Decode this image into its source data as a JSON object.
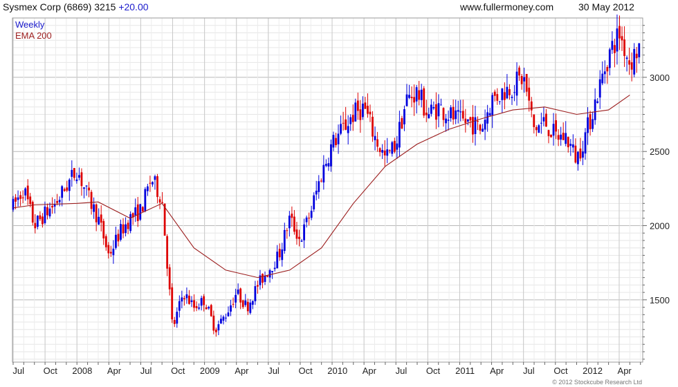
{
  "header": {
    "title": "Sysmex Corp (6869) 3215",
    "change": "+20.00",
    "site": "www.fullermoney.com",
    "date": "30 May 2012",
    "change_color": "#1a1acc"
  },
  "legend": {
    "weekly": "Weekly",
    "ema": "EMA 200",
    "weekly_color": "#1a1acc",
    "ema_color": "#9b1c1c"
  },
  "copyright": "© 2012 Stockcube Research Ltd",
  "chart_data": {
    "type": "candlestick",
    "series": [
      {
        "name": "Weekly",
        "color_up": "#0000dd",
        "color_down": "#dd0000"
      },
      {
        "name": "EMA 200",
        "color": "#9b1c1c"
      }
    ],
    "ylim": [
      1080,
      3400
    ],
    "y_ticks": [
      1500,
      2000,
      2500,
      3000
    ],
    "x_ticks": [
      "Jul",
      "Oct",
      "2008",
      "Apr",
      "Jul",
      "Oct",
      "2009",
      "Apr",
      "Jul",
      "Oct",
      "2010",
      "Apr",
      "Jul",
      "Oct",
      "2011",
      "Apr",
      "Jul",
      "Oct",
      "2012",
      "Apr"
    ],
    "grid": true,
    "legend_position": "top-left",
    "price_path": [
      [
        "2007-07",
        2130
      ],
      [
        "2007-08",
        2250
      ],
      [
        "2007-09",
        2000
      ],
      [
        "2007-10",
        2080
      ],
      [
        "2007-11",
        2150
      ],
      [
        "2008-01",
        2380
      ],
      [
        "2008-02",
        2200
      ],
      [
        "2008-03",
        2050
      ],
      [
        "2008-04",
        1800
      ],
      [
        "2008-05",
        1950
      ],
      [
        "2008-06",
        2050
      ],
      [
        "2008-07",
        2100
      ],
      [
        "2008-08",
        2320
      ],
      [
        "2008-09",
        2180
      ],
      [
        "2008-10",
        1300
      ],
      [
        "2008-11",
        1550
      ],
      [
        "2008-12",
        1450
      ],
      [
        "2009-01",
        1500
      ],
      [
        "2009-02",
        1300
      ],
      [
        "2009-03",
        1400
      ],
      [
        "2009-04",
        1550
      ],
      [
        "2009-05",
        1450
      ],
      [
        "2009-06",
        1600
      ],
      [
        "2009-07",
        1700
      ],
      [
        "2009-08",
        1800
      ],
      [
        "2009-09",
        2050
      ],
      [
        "2009-10",
        1900
      ],
      [
        "2009-11",
        2100
      ],
      [
        "2009-12",
        2350
      ],
      [
        "2010-01",
        2550
      ],
      [
        "2010-02",
        2650
      ],
      [
        "2010-03",
        2750
      ],
      [
        "2010-04",
        2800
      ],
      [
        "2010-05",
        2600
      ],
      [
        "2010-06",
        2450
      ],
      [
        "2010-07",
        2550
      ],
      [
        "2010-08",
        2850
      ],
      [
        "2010-09",
        2900
      ],
      [
        "2010-10",
        2750
      ],
      [
        "2010-11",
        2800
      ],
      [
        "2010-12",
        2750
      ],
      [
        "2011-01",
        2700
      ],
      [
        "2011-02",
        2700
      ],
      [
        "2011-03",
        2650
      ],
      [
        "2011-04",
        2850
      ],
      [
        "2011-05",
        2900
      ],
      [
        "2011-06",
        2950
      ],
      [
        "2011-07",
        3000
      ],
      [
        "2011-08",
        2650
      ],
      [
        "2011-09",
        2700
      ],
      [
        "2011-10",
        2600
      ],
      [
        "2011-11",
        2600
      ],
      [
        "2011-12",
        2450
      ],
      [
        "2012-01",
        2650
      ],
      [
        "2012-02",
        2900
      ],
      [
        "2012-03",
        3150
      ],
      [
        "2012-04",
        3300
      ],
      [
        "2012-05",
        3100
      ],
      [
        "2012-05-30",
        3215
      ]
    ],
    "ema_path": [
      [
        "2007-07",
        2120
      ],
      [
        "2007-09",
        2140
      ],
      [
        "2008-01",
        2150
      ],
      [
        "2008-03",
        2160
      ],
      [
        "2008-06",
        2050
      ],
      [
        "2008-09",
        2150
      ],
      [
        "2008-12",
        1850
      ],
      [
        "2009-03",
        1700
      ],
      [
        "2009-06",
        1650
      ],
      [
        "2009-09",
        1700
      ],
      [
        "2009-12",
        1850
      ],
      [
        "2010-03",
        2150
      ],
      [
        "2010-06",
        2400
      ],
      [
        "2010-09",
        2550
      ],
      [
        "2010-12",
        2650
      ],
      [
        "2011-03",
        2720
      ],
      [
        "2011-06",
        2780
      ],
      [
        "2011-09",
        2800
      ],
      [
        "2011-12",
        2750
      ],
      [
        "2012-03",
        2780
      ],
      [
        "2012-05",
        2880
      ]
    ]
  }
}
